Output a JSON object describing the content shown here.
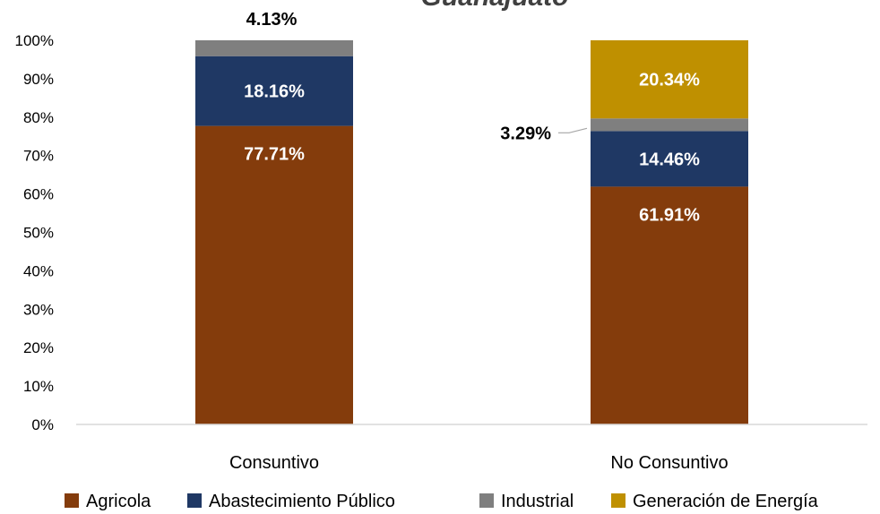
{
  "chart_data": {
    "type": "bar",
    "stacked": true,
    "title": "Guanajuato",
    "categories": [
      "Consuntivo",
      "No Consuntivo"
    ],
    "series": [
      {
        "name": "Agricola",
        "color": "#843C0C",
        "values": [
          77.71,
          61.91
        ],
        "labels": [
          "77.71%",
          "61.91%"
        ]
      },
      {
        "name": "Abastecimiento Público",
        "color": "#1F3864",
        "values": [
          18.16,
          14.46
        ],
        "labels": [
          "18.16%",
          "14.46%"
        ]
      },
      {
        "name": "Industrial",
        "color": "#7F7F7F",
        "values": [
          4.13,
          3.29
        ],
        "labels": [
          "4.13%",
          "3.29%"
        ]
      },
      {
        "name": "Generación de Energía",
        "color": "#BF9000",
        "values": [
          0,
          20.34
        ],
        "labels": [
          "",
          "20.34%"
        ]
      }
    ],
    "ylim": [
      0,
      100
    ],
    "yticks": [
      "0%",
      "10%",
      "20%",
      "30%",
      "40%",
      "50%",
      "60%",
      "70%",
      "80%",
      "90%",
      "100%"
    ],
    "legend": "bottom",
    "grid": false
  }
}
